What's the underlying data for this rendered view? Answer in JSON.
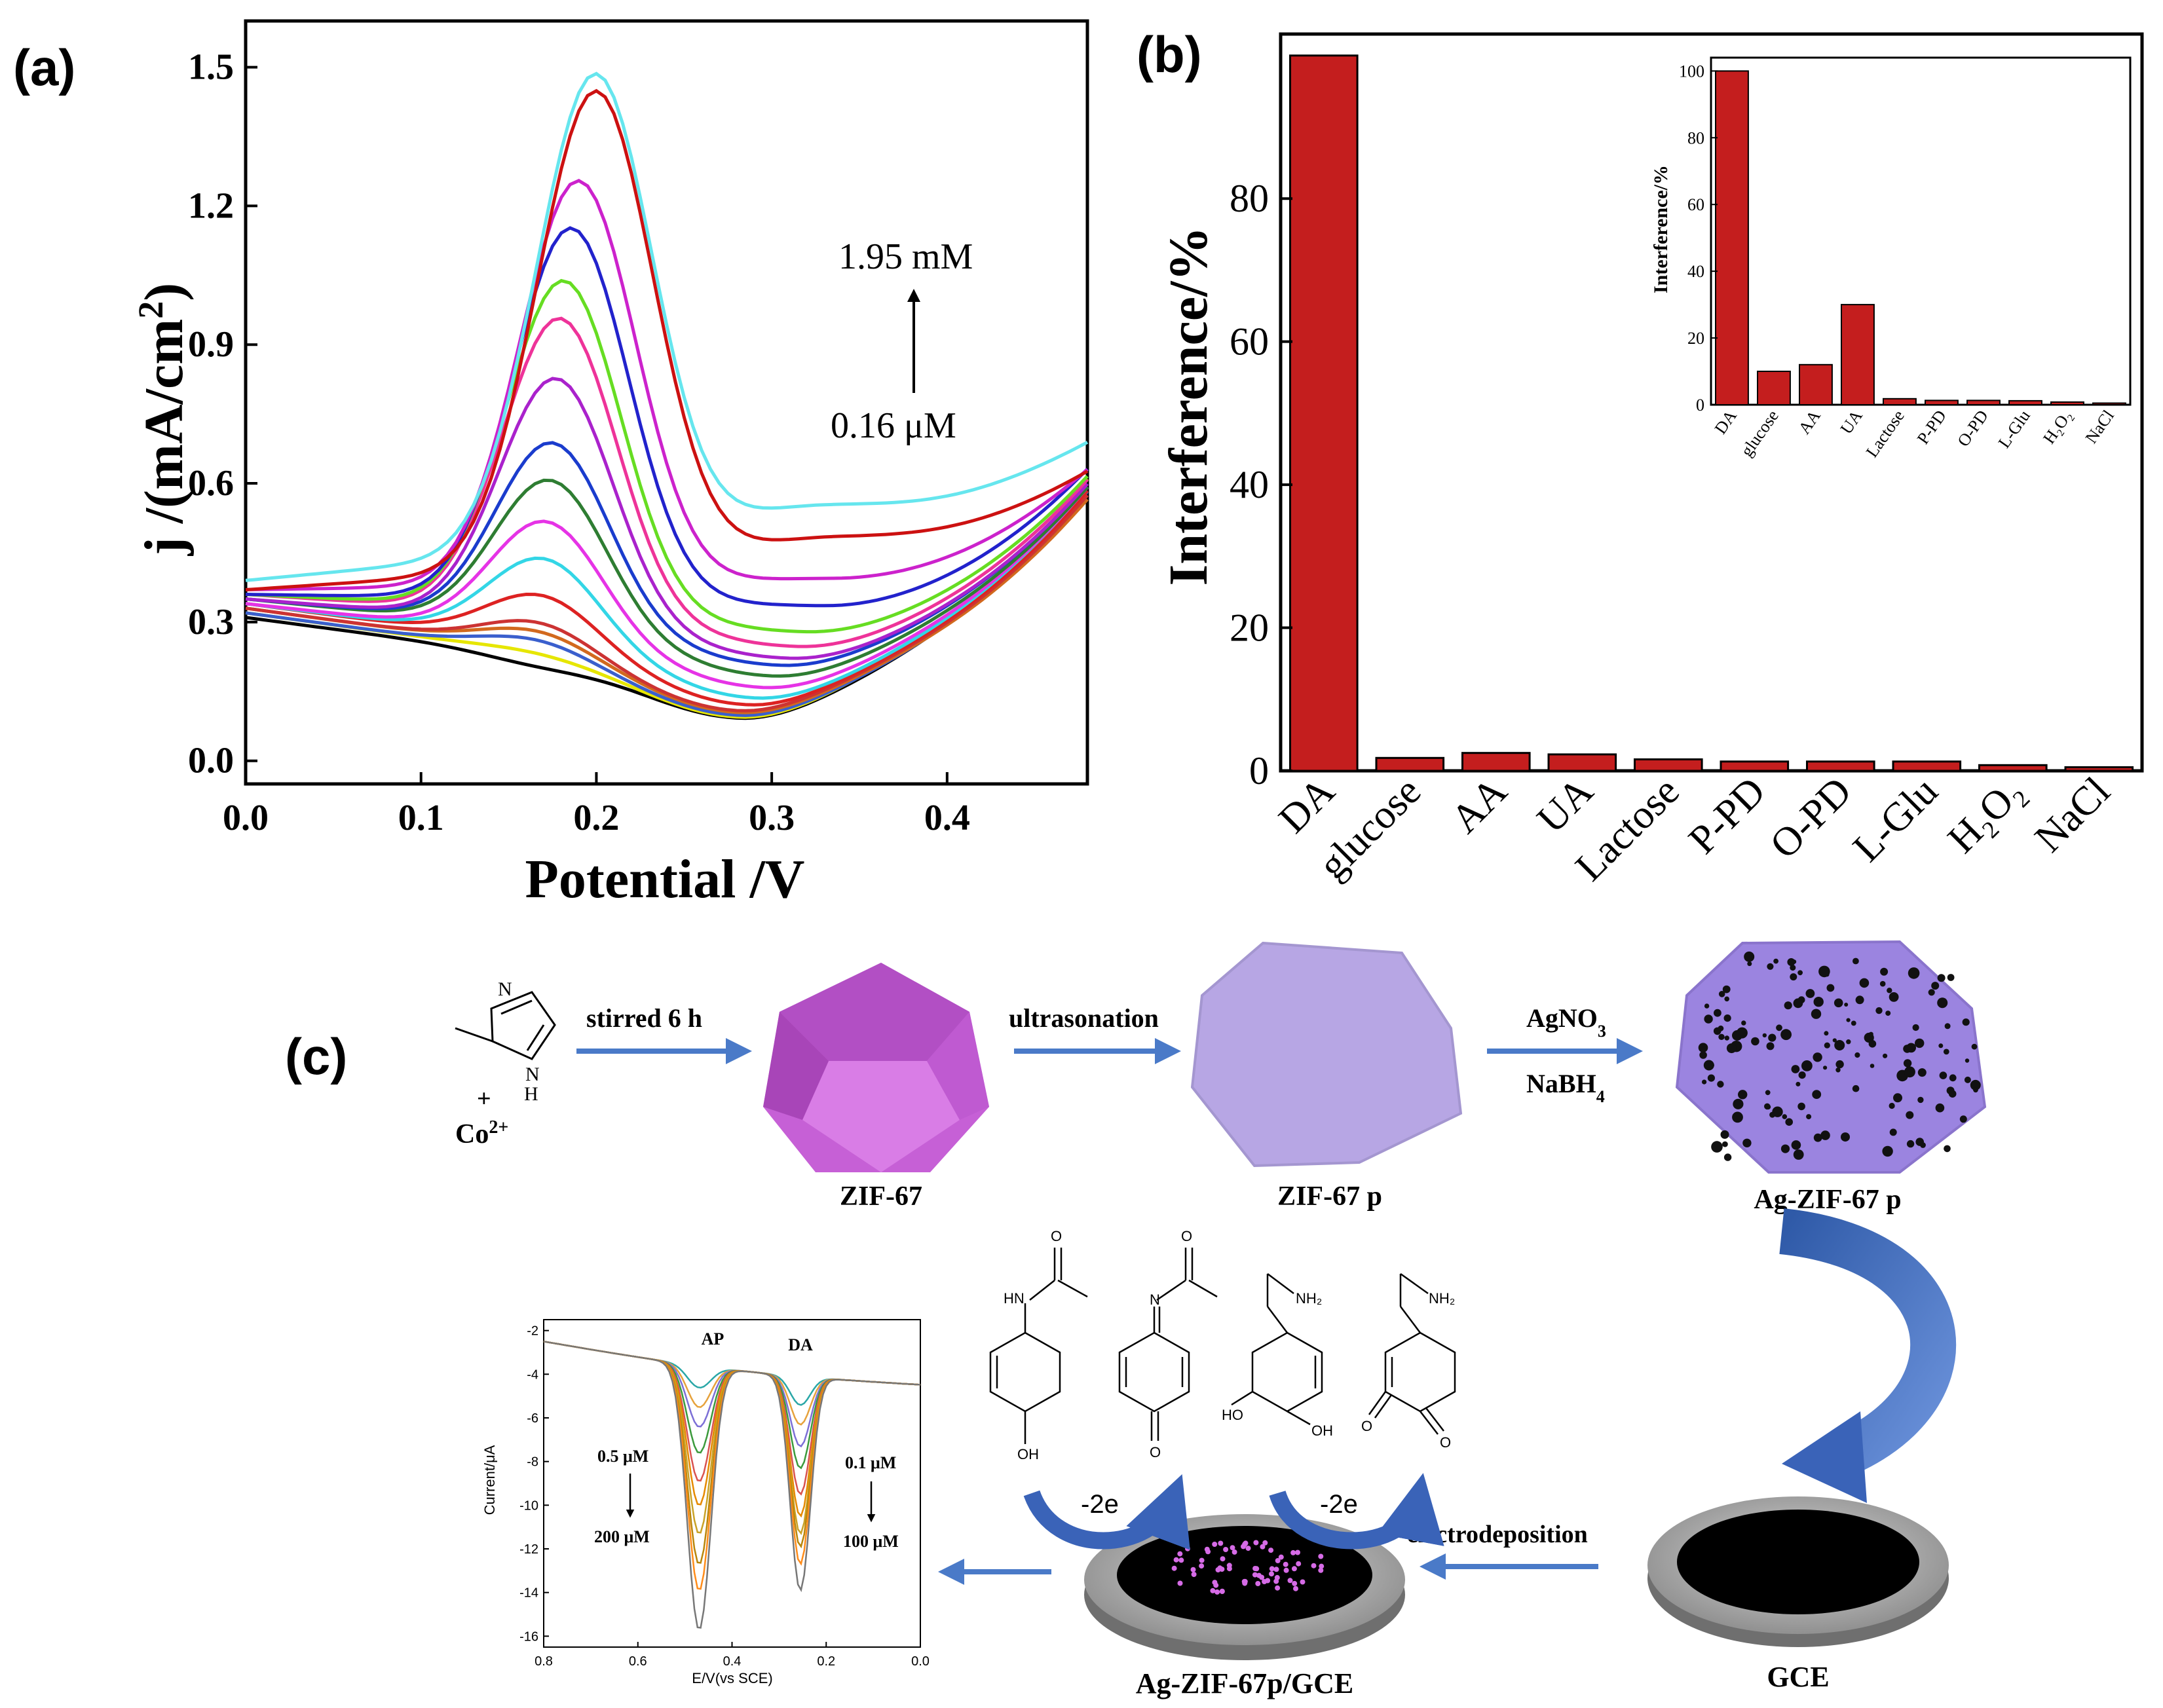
{
  "panels": {
    "a": "(a)",
    "b": "(b)",
    "c": "(c)"
  },
  "chart_data": [
    {
      "id": "a",
      "type": "line",
      "title": "",
      "xlabel": "Potential /V",
      "ylabel": "j /(mA/cm",
      "ylabel_sup": "2",
      "ylabel_tail": ")",
      "xlim": [
        0.0,
        0.48
      ],
      "ylim": [
        -0.05,
        1.6
      ],
      "xticks": [
        "0.0",
        "0.1",
        "0.2",
        "0.3",
        "0.4"
      ],
      "yticks": [
        "0.0",
        "0.3",
        "0.6",
        "0.9",
        "1.2",
        "1.5"
      ],
      "annotation_high": "1.95 mM",
      "annotation_low": "0.16 μM",
      "series": [
        {
          "color": "#000000",
          "base": 0.31,
          "peak": 0.21,
          "peakx": 0.165,
          "min": 0.03,
          "minx": 0.28,
          "end": 0.62
        },
        {
          "color": "#e6e600",
          "base": 0.32,
          "peak": 0.24,
          "peakx": 0.167,
          "min": 0.03,
          "minx": 0.28,
          "end": 0.63
        },
        {
          "color": "#3a5fcd",
          "base": 0.32,
          "peak": 0.27,
          "peakx": 0.168,
          "min": 0.035,
          "minx": 0.28,
          "end": 0.6
        },
        {
          "color": "#d2691e",
          "base": 0.33,
          "peak": 0.29,
          "peakx": 0.169,
          "min": 0.04,
          "minx": 0.28,
          "end": 0.58
        },
        {
          "color": "#cc3333",
          "base": 0.33,
          "peak": 0.31,
          "peakx": 0.17,
          "min": 0.045,
          "minx": 0.28,
          "end": 0.59
        },
        {
          "color": "#dd2222",
          "base": 0.34,
          "peak": 0.37,
          "peakx": 0.171,
          "min": 0.06,
          "minx": 0.285,
          "end": 0.6
        },
        {
          "color": "#33d6e6",
          "base": 0.34,
          "peak": 0.45,
          "peakx": 0.172,
          "min": 0.08,
          "minx": 0.29,
          "end": 0.61
        },
        {
          "color": "#e633e6",
          "base": 0.34,
          "peak": 0.53,
          "peakx": 0.173,
          "min": 0.11,
          "minx": 0.295,
          "end": 0.61
        },
        {
          "color": "#2e7d32",
          "base": 0.35,
          "peak": 0.62,
          "peakx": 0.175,
          "min": 0.14,
          "minx": 0.3,
          "end": 0.61
        },
        {
          "color": "#1a3ccd",
          "base": 0.35,
          "peak": 0.7,
          "peakx": 0.176,
          "min": 0.17,
          "minx": 0.305,
          "end": 0.62
        },
        {
          "color": "#aa22cc",
          "base": 0.35,
          "peak": 0.84,
          "peakx": 0.178,
          "min": 0.19,
          "minx": 0.31,
          "end": 0.62
        },
        {
          "color": "#ee3399",
          "base": 0.36,
          "peak": 0.97,
          "peakx": 0.18,
          "min": 0.22,
          "minx": 0.315,
          "end": 0.63
        },
        {
          "color": "#66dd22",
          "base": 0.36,
          "peak": 1.05,
          "peakx": 0.182,
          "min": 0.26,
          "minx": 0.32,
          "end": 0.64
        },
        {
          "color": "#2222cc",
          "base": 0.36,
          "peak": 1.16,
          "peakx": 0.186,
          "min": 0.33,
          "minx": 0.33,
          "end": 0.66
        },
        {
          "color": "#cc22cc",
          "base": 0.37,
          "peak": 1.26,
          "peakx": 0.19,
          "min": 0.4,
          "minx": 0.335,
          "end": 0.66
        },
        {
          "color": "#cc1111",
          "base": 0.37,
          "peak": 1.45,
          "peakx": 0.2,
          "min": 0.51,
          "minx": 0.34,
          "end": 0.66
        },
        {
          "color": "#66e6ee",
          "base": 0.39,
          "peak": 1.49,
          "peakx": 0.2,
          "min": 0.59,
          "minx": 0.33,
          "end": 0.73
        }
      ]
    },
    {
      "id": "b",
      "type": "bar",
      "title": "",
      "xlabel": "",
      "ylabel": "Interference/%",
      "ylim": [
        0,
        103
      ],
      "yticks": [
        "0",
        "20",
        "40",
        "60",
        "80"
      ],
      "categories": [
        "DA",
        "glucose",
        "AA",
        "UA",
        "Lactose",
        "P-PD",
        "O-PD",
        "L-Glu",
        "H₂O₂",
        "NaCl"
      ],
      "values": [
        100,
        1.8,
        2.5,
        2.3,
        1.6,
        1.3,
        1.3,
        1.3,
        0.8,
        0.5
      ],
      "bar_color": "#c41e1e"
    },
    {
      "id": "b-inset",
      "type": "bar",
      "title": "",
      "xlabel": "",
      "ylabel": "Interference/%",
      "ylim": [
        0,
        104
      ],
      "yticks": [
        "0",
        "20",
        "40",
        "60",
        "80",
        "100"
      ],
      "categories": [
        "DA",
        "glucose",
        "AA",
        "UA",
        "Lactose",
        "P-PD",
        "O-PD",
        "L-Glu",
        "H₂O₂",
        "NaCl"
      ],
      "values": [
        100,
        10,
        12,
        30,
        1.8,
        1.3,
        1.3,
        1.2,
        0.8,
        0.5
      ],
      "bar_color": "#c41e1e"
    },
    {
      "id": "c-mini",
      "type": "line",
      "title": "",
      "xlabel": "E/V(vs SCE)",
      "ylabel": "Current/μA",
      "xlim": [
        0.8,
        0.0
      ],
      "ylim": [
        -16.5,
        -1.5
      ],
      "xticks": [
        "0.8",
        "0.6",
        "0.4",
        "0.2",
        "0.0"
      ],
      "yticks": [
        "-2",
        "-4",
        "-6",
        "-8",
        "-10",
        "-12",
        "-14",
        "-16"
      ],
      "peak_labels": [
        "AP",
        "DA"
      ],
      "conc_left_top": "0.5 μM",
      "conc_left_bottom": "200 μM",
      "conc_right_top": "0.1 μM",
      "conc_right_bottom": "100 μM",
      "ap_depths": [
        -4.5,
        -5.4,
        -6.3,
        -7.5,
        -8.8,
        -9.9,
        -11.2,
        -12.6,
        -13.8,
        -15.6
      ],
      "da_depths": [
        -5.1,
        -6.0,
        -7.0,
        -8.0,
        -9.2,
        -10.2,
        -11.0,
        -11.6,
        -12.4,
        -13.6
      ],
      "colors": [
        "#2aa7a7",
        "#e6a23c",
        "#7c6fd6",
        "#3c9a3c",
        "#d9534f",
        "#e68a00",
        "#c9a227",
        "#b8860b",
        "#ff8c1a",
        "#777777"
      ]
    }
  ],
  "scheme": {
    "reactant_plus": "+",
    "cobalt": "Co",
    "cobalt_charge": "2+",
    "steps": {
      "stirred": "stirred 6 h",
      "ultrasonation": "ultrasonation",
      "agno3": "AgNO",
      "agno3_sub": "3",
      "nabh4": "NaBH",
      "nabh4_sub": "4",
      "electrodeposition": "electrodeposition"
    },
    "labels": {
      "zif67": "ZIF-67",
      "zif67p": "ZIF-67 p",
      "agzif67p": "Ag-ZIF-67 p",
      "agzif67gce": "Ag-ZIF-67p/GCE",
      "gce": "GCE"
    },
    "electrons_left": "-2e",
    "electrons_right": "-2e",
    "atoms": {
      "N": "N",
      "H": "H",
      "HN": "HN",
      "O": "O",
      "OH": "OH",
      "HO": "HO",
      "NH2": "NH₂"
    },
    "colors": {
      "arrow_blue": "#4a7ac8",
      "zif_purple": "#c660d6",
      "zifp_lavender": "#b7a6e4",
      "agzif_purple": "#9b84e0",
      "curved_arrow": "#3a63b8"
    }
  }
}
